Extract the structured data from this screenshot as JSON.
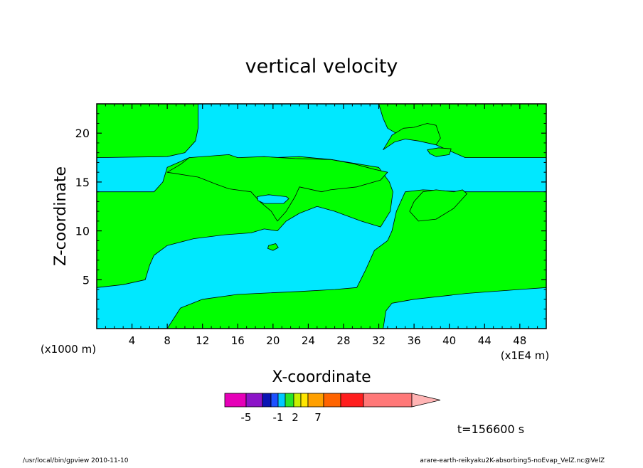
{
  "chart_data": {
    "type": "heatmap",
    "title": "vertical velocity",
    "xlabel": "X-coordinate",
    "ylabel": "Z-coordinate",
    "x_unit": "(x1E4 m)",
    "y_unit": "(x1000 m)",
    "xlim": [
      0,
      51
    ],
    "ylim": [
      0,
      23
    ],
    "x_ticks": [
      4,
      8,
      12,
      16,
      20,
      24,
      28,
      32,
      36,
      40,
      44,
      48
    ],
    "y_ticks": [
      5,
      10,
      15,
      20
    ],
    "background_color": "#00ff00",
    "regions": [
      {
        "color": "#00e8ff",
        "points": [
          [
            11.5,
            23
          ],
          [
            32,
            23
          ],
          [
            32.5,
            21.5
          ],
          [
            33,
            20.5
          ],
          [
            34.5,
            19.7
          ],
          [
            36,
            19.6
          ],
          [
            38,
            19
          ],
          [
            40,
            18.2
          ],
          [
            41.8,
            17.5
          ],
          [
            51,
            17.5
          ],
          [
            51,
            14
          ],
          [
            42,
            14
          ],
          [
            37,
            14.2
          ],
          [
            35,
            14
          ],
          [
            34,
            12
          ],
          [
            33.5,
            10
          ],
          [
            33,
            9
          ],
          [
            31.5,
            8
          ],
          [
            30.5,
            6
          ],
          [
            29.5,
            4.2
          ],
          [
            27,
            4
          ],
          [
            23,
            3.8
          ],
          [
            16,
            3.5
          ],
          [
            12,
            3
          ],
          [
            9.5,
            2.1
          ],
          [
            8,
            0
          ],
          [
            0,
            0
          ],
          [
            0,
            4.2
          ],
          [
            3,
            4.5
          ],
          [
            5.5,
            5
          ],
          [
            6,
            6.5
          ],
          [
            6.5,
            7.5
          ],
          [
            8,
            8.5
          ],
          [
            11,
            9.2
          ],
          [
            14.5,
            9.6
          ],
          [
            17.5,
            9.8
          ],
          [
            19,
            10.2
          ],
          [
            20.5,
            10
          ],
          [
            21.5,
            11
          ],
          [
            23,
            11.8
          ],
          [
            25,
            12.5
          ],
          [
            27,
            12
          ],
          [
            30,
            11
          ],
          [
            32.2,
            10.4
          ],
          [
            33.3,
            12
          ],
          [
            33.6,
            14
          ],
          [
            33.2,
            15
          ],
          [
            32,
            16.5
          ],
          [
            26.6,
            17.3
          ],
          [
            23,
            17.6
          ],
          [
            20,
            17.5
          ],
          [
            16,
            17.3
          ],
          [
            10.5,
            17.5
          ],
          [
            8,
            16.5
          ],
          [
            7.5,
            15
          ],
          [
            6.5,
            14
          ],
          [
            0,
            14
          ],
          [
            0,
            17.5
          ],
          [
            8,
            17.6
          ],
          [
            10,
            18
          ],
          [
            11.2,
            19.2
          ],
          [
            11.5,
            20.5
          ]
        ]
      },
      {
        "color": "#00e8ff",
        "points": [
          [
            0,
            0
          ],
          [
            8,
            0
          ],
          [
            7,
            0
          ],
          [
            0,
            0
          ]
        ]
      },
      {
        "color": "#00e8ff",
        "points": [
          [
            32.5,
            0
          ],
          [
            51,
            0
          ],
          [
            51,
            4.2
          ],
          [
            48,
            4
          ],
          [
            42,
            3.6
          ],
          [
            36,
            3
          ],
          [
            33.5,
            2.6
          ],
          [
            32.8,
            1.8
          ]
        ]
      },
      {
        "color": "#00ff00",
        "points": [
          [
            37,
            14
          ],
          [
            38.5,
            14.2
          ],
          [
            40.5,
            14
          ],
          [
            41.5,
            14.2
          ],
          [
            42,
            13.8
          ],
          [
            40.5,
            12.3
          ],
          [
            38.5,
            11.2
          ],
          [
            36.5,
            11
          ],
          [
            35.5,
            12
          ],
          [
            36,
            13
          ]
        ]
      },
      {
        "color": "#00ff00",
        "points": [
          [
            10.5,
            17.5
          ],
          [
            15,
            17.8
          ],
          [
            16,
            17.5
          ],
          [
            19,
            17.6
          ],
          [
            22.5,
            17.4
          ],
          [
            26.6,
            17.3
          ],
          [
            29,
            16.9
          ],
          [
            31.5,
            16.3
          ],
          [
            33,
            16
          ],
          [
            32.2,
            15.2
          ],
          [
            29.5,
            14.5
          ],
          [
            26.5,
            14.2
          ],
          [
            25.5,
            14
          ],
          [
            23,
            14.5
          ],
          [
            22.5,
            13.5
          ],
          [
            21.5,
            12
          ],
          [
            20.5,
            11
          ],
          [
            19.8,
            12
          ],
          [
            18.5,
            13
          ],
          [
            17.5,
            14
          ],
          [
            15,
            14.3
          ],
          [
            13.5,
            14.8
          ],
          [
            11.5,
            15.5
          ],
          [
            8,
            16
          ],
          [
            9.5,
            16.8
          ]
        ]
      },
      {
        "color": "#00ff00",
        "points": [
          [
            32.5,
            18.3
          ],
          [
            33.5,
            19.8
          ],
          [
            34.8,
            20.5
          ],
          [
            36,
            20.6
          ],
          [
            37.5,
            21
          ],
          [
            38.5,
            20.8
          ],
          [
            39,
            19.5
          ],
          [
            38.5,
            18.8
          ],
          [
            36.5,
            19.2
          ],
          [
            35,
            19.4
          ],
          [
            33.8,
            19.1
          ]
        ]
      },
      {
        "color": "#00ff00",
        "points": [
          [
            37.5,
            18.3
          ],
          [
            38.8,
            18.5
          ],
          [
            40.2,
            18.4
          ],
          [
            40,
            17.8
          ],
          [
            38.5,
            17.6
          ],
          [
            37.8,
            17.9
          ]
        ]
      },
      {
        "color": "#00ff00",
        "points": [
          [
            19.5,
            8.5
          ],
          [
            20.3,
            8.7
          ],
          [
            20.6,
            8.3
          ],
          [
            20,
            8
          ],
          [
            19.4,
            8.2
          ]
        ]
      },
      {
        "color": "#00e8ff",
        "points": [
          [
            18.2,
            13.5
          ],
          [
            19.5,
            13.7
          ],
          [
            21.5,
            13.5
          ],
          [
            21.8,
            13.3
          ],
          [
            21.2,
            12.8
          ],
          [
            19,
            12.8
          ],
          [
            18.3,
            13.1
          ]
        ]
      }
    ],
    "colorbar": {
      "colors": [
        "#e600b8",
        "#8c14c8",
        "#0a14b4",
        "#1e50ff",
        "#00c8ff",
        "#28e628",
        "#c8f000",
        "#ffe600",
        "#ffa000",
        "#ff6400",
        "#ff1e1e",
        "#ff7878",
        "#ffb4b4"
      ],
      "labels": [
        "-5",
        "-1",
        "2",
        "7"
      ]
    },
    "time_label": "t=156600 s",
    "footer_left": "/usr/local/bin/gpview  2010-11-10",
    "footer_right": "arare-earth-reikyaku2K-absorbing5-noEvap_VelZ.nc@VelZ"
  }
}
